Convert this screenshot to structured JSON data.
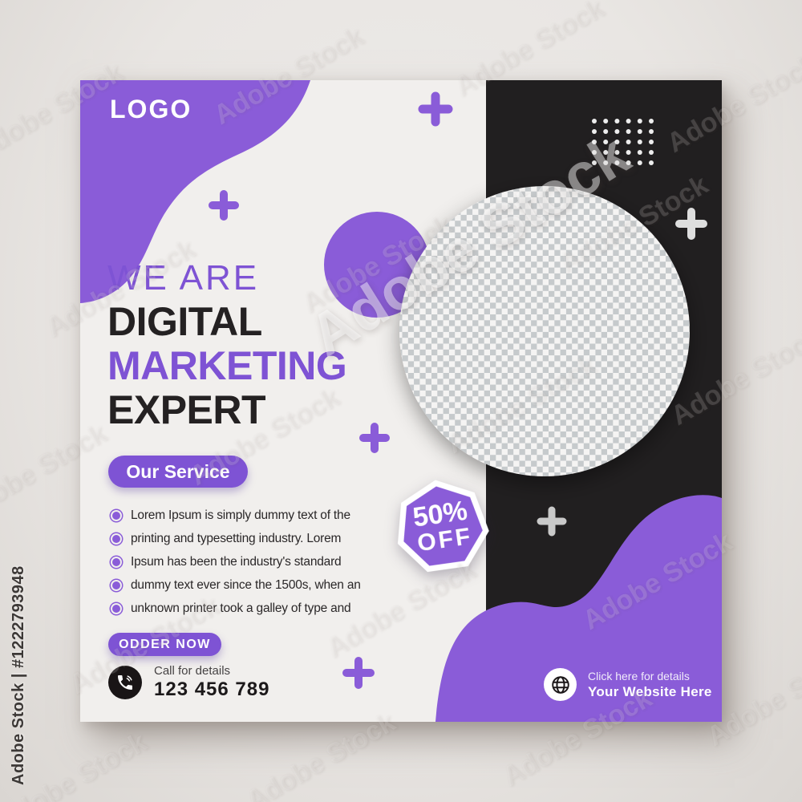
{
  "watermark": {
    "brand": "Adobe Stock",
    "id_label": "Adobe Stock | #1222793948"
  },
  "logo": "LOGO",
  "headline": {
    "line1": "WE ARE",
    "line2": "DIGITAL",
    "line3": "MARKETING",
    "line4": "EXPERT"
  },
  "service": {
    "button_label": "Our Service",
    "items": [
      "Lorem Ipsum is simply dummy text of the",
      "printing and typesetting industry. Lorem",
      "Ipsum has been the industry's standard",
      "dummy text ever since the 1500s, when an",
      "unknown printer took a galley of type and"
    ]
  },
  "order_button_label": "ODDER NOW",
  "contact": {
    "label": "Call for details",
    "phone": "123 456 789"
  },
  "badge": {
    "percent": "50%",
    "off": "OFF"
  },
  "website": {
    "label": "Click here for details",
    "url_text": "Your Website Here"
  },
  "colors": {
    "purple": "#8a5cd8",
    "purple_deep": "#7e53d4",
    "dark_panel": "#211f20",
    "light_panel": "#f1efed",
    "outer_bg": "#e9e6e3",
    "text_dark": "#242122",
    "checker_gray": "#c6cacc",
    "checker_light": "#f5f4f3",
    "white": "#ffffff"
  }
}
